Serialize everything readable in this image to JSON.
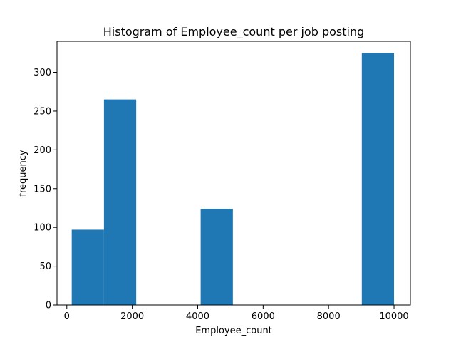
{
  "chart_data": {
    "type": "bar",
    "title": "Histogram of Employee_count per job posting",
    "xlabel": "Employee_count",
    "ylabel": "frequency",
    "xlim": [
      -300,
      10500
    ],
    "ylim": [
      0,
      340
    ],
    "x_ticks": [
      0,
      2000,
      4000,
      6000,
      8000,
      10000
    ],
    "y_ticks": [
      0,
      50,
      100,
      150,
      200,
      250,
      300
    ],
    "bin_edges": [
      150,
      1135,
      2120,
      3105,
      4090,
      5075,
      6060,
      7045,
      8030,
      9015,
      10000
    ],
    "values": [
      97,
      265,
      0,
      0,
      124,
      0,
      0,
      0,
      0,
      325
    ],
    "bar_color": "#1f77b4",
    "grid": false,
    "legend": "none"
  }
}
